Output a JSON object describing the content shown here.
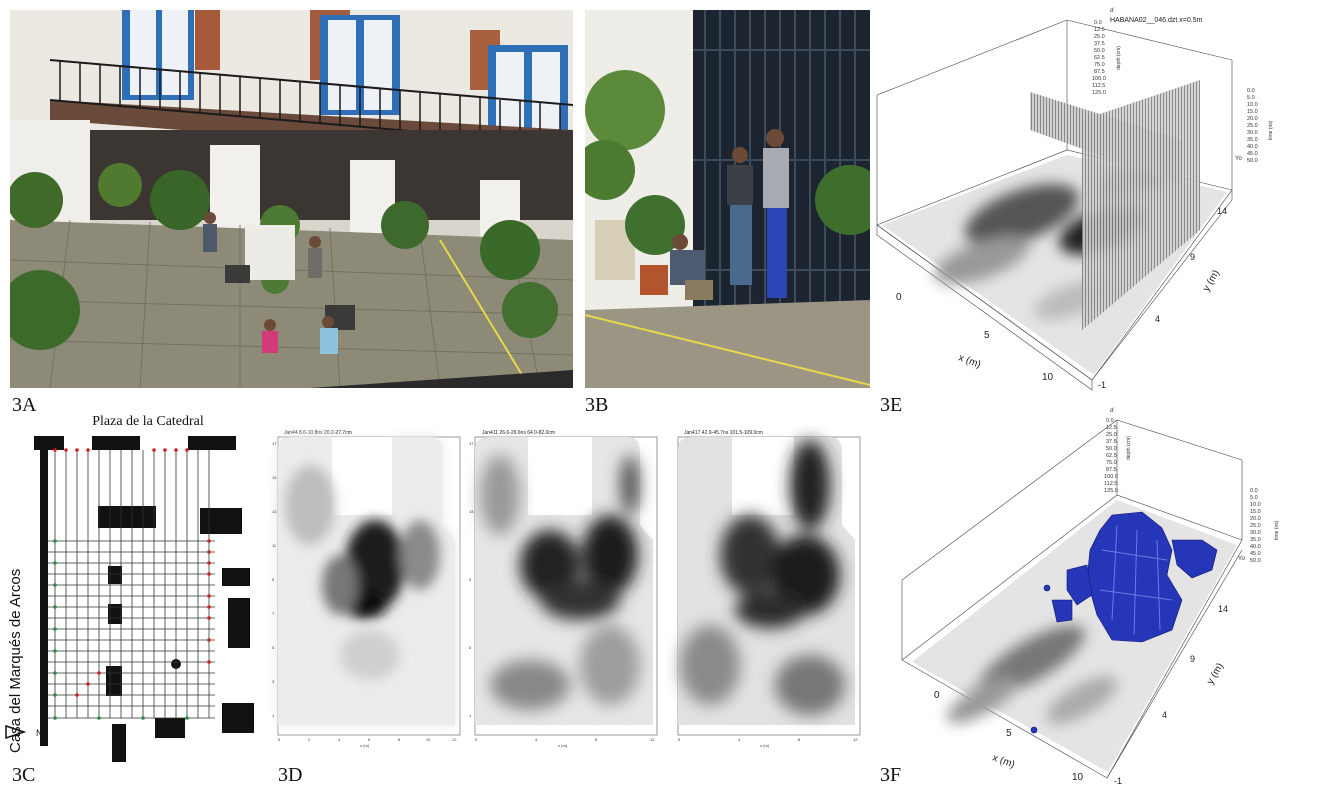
{
  "panel_labels": {
    "a": "3A",
    "b": "3B",
    "c": "3C",
    "d": "3D",
    "e": "3E",
    "f": "3F"
  },
  "map_3c": {
    "top_title": "Plaza de la Catedral",
    "side_title": "Casa del Marqués de Arcos",
    "north_label": "N"
  },
  "slices_3d": [
    {
      "header": "Jan44   8.6-10.8ns  20.2-27.7cm"
    },
    {
      "header": "Jan411   26.6-29.6ns  64.0-82.0cm"
    },
    {
      "header": "Jan417   42.9-45.7ns  101.5-109.0cm"
    }
  ],
  "slice_axis": {
    "y_ticks": [
      "17",
      "15",
      "13",
      "11",
      "9",
      "7",
      "5",
      "3",
      "1"
    ],
    "x_ticks": [
      "0",
      "2",
      "4",
      "6",
      "8",
      "10",
      "12"
    ],
    "x_unit": "x (m)",
    "y_unit": "y (m)"
  },
  "cube_e": {
    "top_letter": "d",
    "profile_title": "HABANA02__046.dzt  x=0.5m",
    "depth_unit": "depth (cm)",
    "time_unit": "time (ns)",
    "depth_ticks": [
      "0.0",
      "12.5",
      "25.0",
      "37.5",
      "50.0",
      "62.5",
      "75.0",
      "87.5",
      "100.0",
      "112.5",
      "125.0"
    ],
    "time_ticks": [
      "0.0",
      "5.0",
      "10.0",
      "15.0",
      "20.0",
      "25.0",
      "30.0",
      "35.0",
      "40.0",
      "45.0",
      "50.0"
    ],
    "x_label": "x (m)",
    "y_label": "y (m)",
    "x_ticks": [
      "0",
      "5",
      "10"
    ],
    "y_ticks": [
      "-1",
      "4",
      "9",
      "14"
    ],
    "yo": "Yo"
  },
  "cube_f": {
    "top_letter": "d",
    "depth_unit": "depth (cm)",
    "time_unit": "time (ns)",
    "depth_ticks": [
      "0.0",
      "12.5",
      "25.0",
      "37.5",
      "50.0",
      "62.5",
      "75.0",
      "87.5",
      "100.0",
      "112.5",
      "125.0"
    ],
    "time_ticks": [
      "0.0",
      "5.0",
      "10.0",
      "15.0",
      "20.0",
      "25.0",
      "30.0",
      "35.0",
      "40.0",
      "45.0",
      "50.0"
    ],
    "x_label": "x (m)",
    "y_label": "y (m)",
    "x_ticks": [
      "0",
      "5",
      "10"
    ],
    "y_ticks": [
      "-1",
      "4",
      "9",
      "14"
    ],
    "yo": "Yo"
  },
  "colors": {
    "window_blue": "#2f6fb8",
    "stone": "#8d8a78",
    "gate": "#1c2430",
    "anomaly_blue": "#2536b8",
    "grid_red": "#cc2222",
    "grid_green": "#2a8a4a"
  }
}
